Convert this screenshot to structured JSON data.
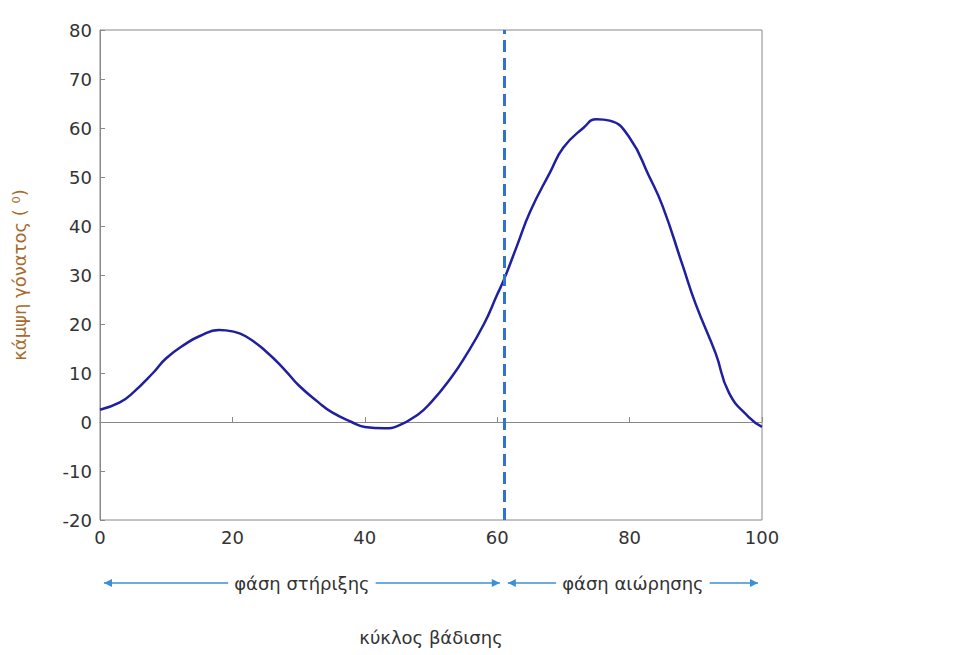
{
  "chart_data": {
    "type": "line",
    "x_label": "κύκλος βάδισης",
    "y_label": "κάμψη γόνατος ( ⁰)",
    "x": [
      0,
      3,
      5,
      8,
      10,
      13,
      15,
      18,
      20,
      22,
      25,
      28,
      30,
      33,
      35,
      38,
      40,
      43,
      45,
      48,
      50,
      53,
      55,
      58,
      60,
      61,
      63,
      65,
      68,
      70,
      73,
      75,
      77,
      80,
      83,
      85,
      88,
      90,
      93,
      95,
      98,
      100
    ],
    "values": [
      2.5,
      4,
      6,
      10,
      13,
      16,
      17.5,
      18.8,
      18.5,
      17.5,
      14.5,
      10.5,
      7.5,
      4,
      2,
      0,
      -1,
      -1.3,
      -0.8,
      1.5,
      4,
      9,
      13,
      20,
      26,
      29,
      36,
      43,
      51,
      56,
      60,
      61.8,
      61.5,
      58,
      50,
      44,
      32,
      24,
      14,
      6,
      1,
      -1
    ],
    "color": "#1f1fa0",
    "marker": "none",
    "xlim": [
      0,
      100
    ],
    "xticks": [
      0,
      20,
      40,
      60,
      80,
      100
    ],
    "ylim": [
      -20,
      80
    ],
    "yticks": [
      -20,
      -10,
      0,
      10,
      20,
      30,
      40,
      50,
      60,
      70,
      80
    ],
    "grid": false,
    "phase_boundary": 61,
    "phases": [
      {
        "label": "φάση στήριξης",
        "from": 0,
        "to": 61
      },
      {
        "label": "φάση αιώρησης",
        "from": 61,
        "to": 100
      }
    ]
  }
}
